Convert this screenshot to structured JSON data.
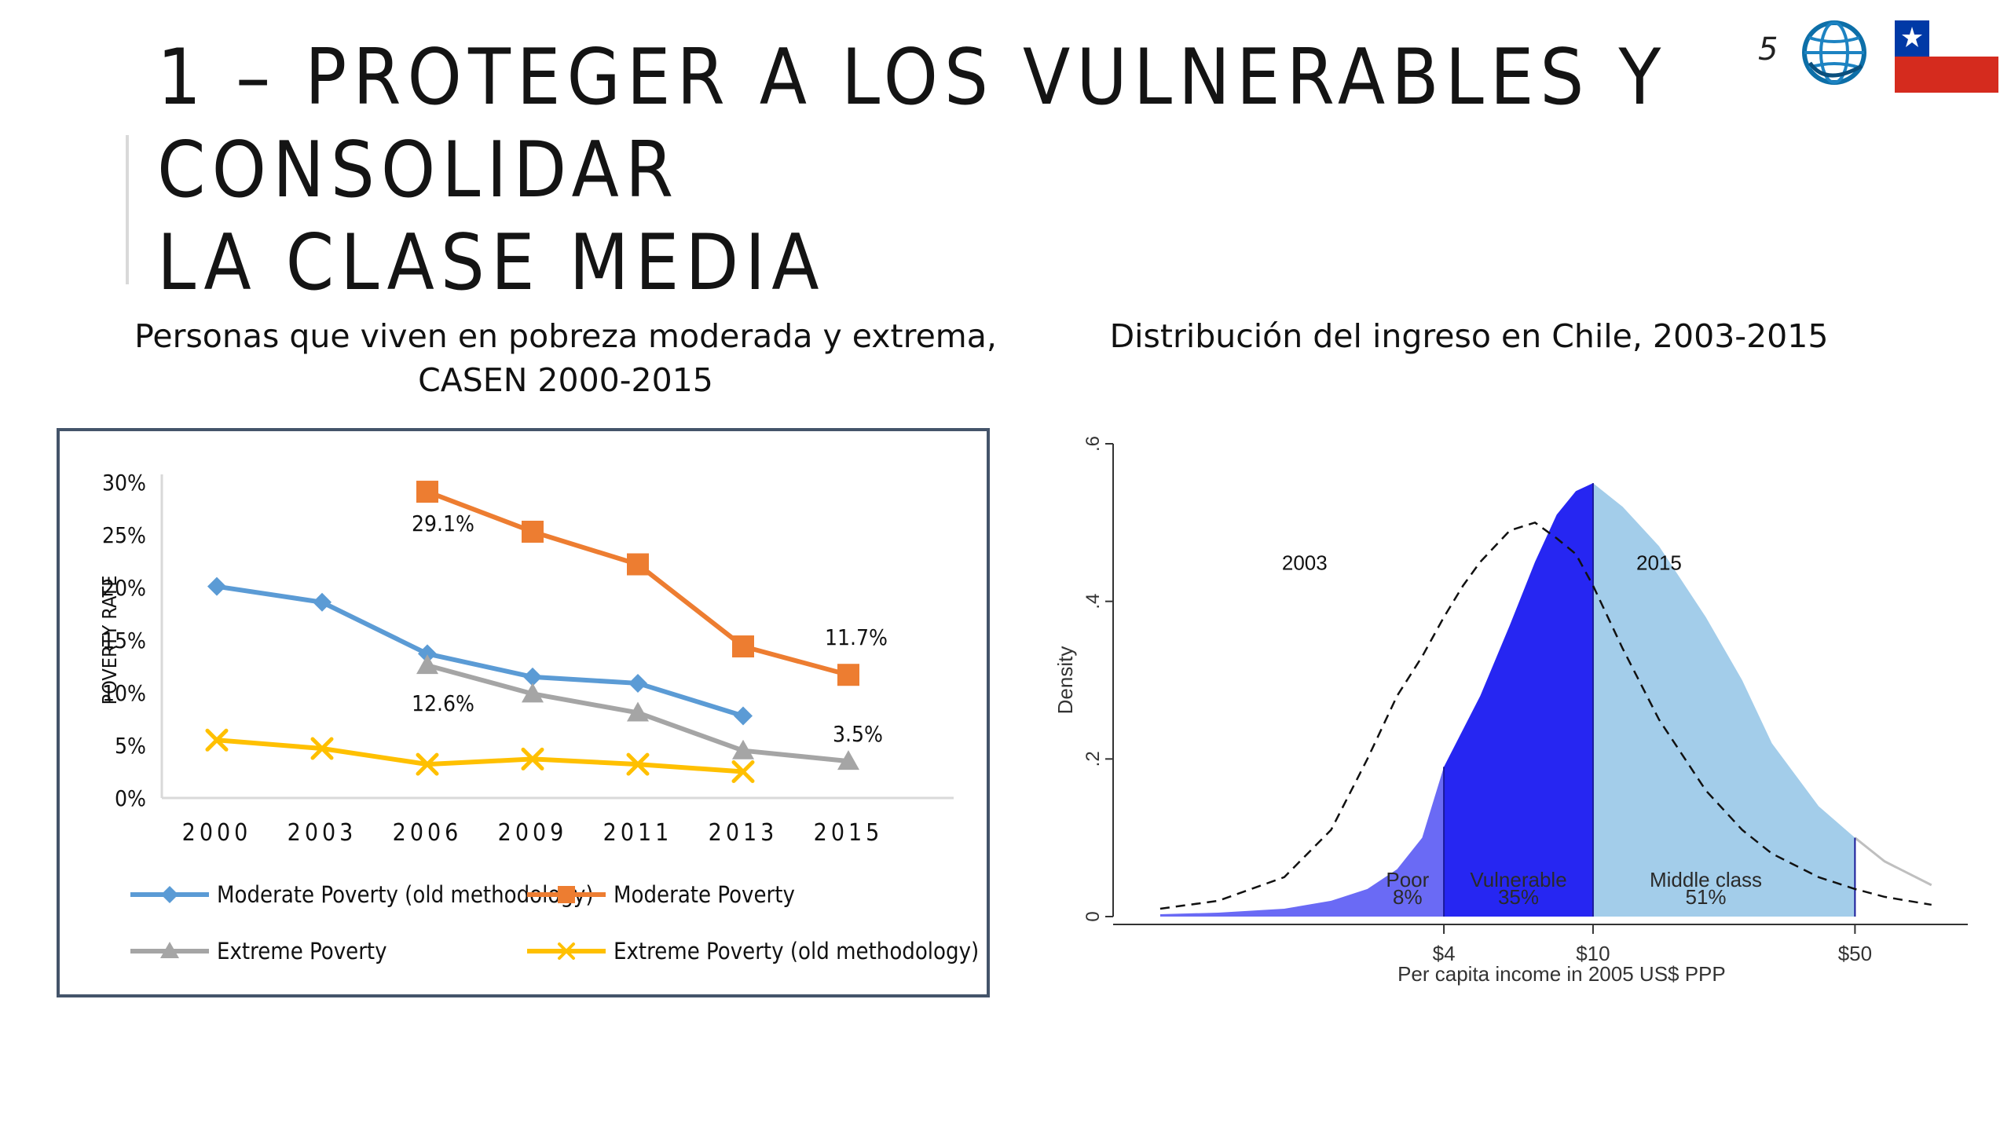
{
  "slide": {
    "title_line1": "1 – PROTEGER A LOS VULNERABLES Y CONSOLIDAR",
    "title_line2": "LA CLASE MEDIA",
    "page_number": "5",
    "logo_icon": "world-bank-globe-icon",
    "flag_icon": "chile-flag-icon"
  },
  "colors": {
    "moderate_old": "#5b9bd5",
    "moderate": "#ed7d31",
    "extreme": "#a5a5a5",
    "extreme_old": "#ffc000",
    "poor_fill": "#6a6af5",
    "vulnerable_fill": "#2626f2",
    "middle_fill": "#a3cdea"
  },
  "chart_data": [
    {
      "type": "line",
      "title": "Personas que viven en pobreza moderada y extrema, CASEN 2000-2015",
      "title_line1": "Personas que viven en pobreza moderada y extrema,",
      "title_line2": "CASEN 2000-2015",
      "ylabel": "POVERTY RATE",
      "xlabel": "",
      "categories": [
        "2000",
        "2003",
        "2006",
        "2009",
        "2011",
        "2013",
        "2015"
      ],
      "ylim": [
        0,
        30
      ],
      "y_ticks": [
        "0%",
        "5%",
        "10%",
        "15%",
        "20%",
        "25%",
        "30%"
      ],
      "grid": false,
      "legend_position": "bottom",
      "series": [
        {
          "name": "Moderate Poverty (old methodology)",
          "marker": "diamond",
          "values": [
            20.1,
            18.6,
            13.7,
            11.5,
            10.9,
            7.8,
            null
          ]
        },
        {
          "name": "Moderate Poverty",
          "marker": "square",
          "values": [
            null,
            null,
            29.1,
            25.3,
            22.2,
            14.4,
            11.7
          ]
        },
        {
          "name": "Extreme Poverty",
          "marker": "triangle",
          "values": [
            null,
            null,
            12.6,
            9.9,
            8.1,
            4.5,
            3.5
          ]
        },
        {
          "name": "Extreme Poverty (old methodology)",
          "marker": "x",
          "values": [
            5.5,
            4.7,
            3.2,
            3.7,
            3.2,
            2.5,
            null
          ]
        }
      ],
      "data_labels": [
        {
          "series": "Moderate Poverty",
          "category": "2006",
          "text": "29.1%"
        },
        {
          "series": "Moderate Poverty",
          "category": "2015",
          "text": "11.7%"
        },
        {
          "series": "Extreme Poverty",
          "category": "2006",
          "text": "12.6%"
        },
        {
          "series": "Extreme Poverty",
          "category": "2015",
          "text": "3.5%"
        }
      ]
    },
    {
      "type": "area",
      "title": "Distribución del ingreso en Chile, 2003-2015",
      "xlabel": "Per capita income in 2005 US$ PPP",
      "ylabel": "Density",
      "x_scale": "log",
      "xlim": [
        0.6,
        100
      ],
      "ylim": [
        0,
        0.6
      ],
      "x_ticks": [
        "$4",
        "$10",
        "$50"
      ],
      "y_ticks": [
        "0",
        ".2",
        ".4",
        ".6"
      ],
      "grid": false,
      "series": [
        {
          "name": "2003",
          "style": "dashed",
          "x": [
            0.7,
            1,
            1.5,
            2,
            2.5,
            3,
            3.5,
            4,
            4.5,
            5,
            6,
            7,
            8,
            9,
            10,
            12,
            15,
            20,
            25,
            30,
            40,
            50,
            60,
            80
          ],
          "y": [
            0.01,
            0.02,
            0.05,
            0.11,
            0.2,
            0.28,
            0.33,
            0.38,
            0.42,
            0.45,
            0.49,
            0.5,
            0.48,
            0.46,
            0.42,
            0.34,
            0.25,
            0.16,
            0.11,
            0.08,
            0.05,
            0.035,
            0.025,
            0.015
          ]
        },
        {
          "name": "2015",
          "style": "filled",
          "x": [
            0.7,
            1,
            1.5,
            2,
            2.5,
            3,
            3.5,
            4,
            5,
            6,
            7,
            8,
            9,
            10,
            12,
            15,
            20,
            25,
            30,
            40,
            50,
            60,
            80
          ],
          "y": [
            0.003,
            0.005,
            0.01,
            0.02,
            0.035,
            0.06,
            0.1,
            0.19,
            0.28,
            0.37,
            0.45,
            0.51,
            0.54,
            0.55,
            0.52,
            0.47,
            0.38,
            0.3,
            0.22,
            0.14,
            0.1,
            0.07,
            0.04
          ]
        }
      ],
      "regions": [
        {
          "label": "Poor",
          "share": "8%",
          "from": 0.7,
          "to": 4
        },
        {
          "label": "Vulnerable",
          "share": "35%",
          "from": 4,
          "to": 10
        },
        {
          "label": "Middle class",
          "share": "51%",
          "from": 10,
          "to": 50
        }
      ],
      "annotations": [
        {
          "text": "2003",
          "x": 1.7,
          "y": 0.45
        },
        {
          "text": "2015",
          "x": 15,
          "y": 0.45
        }
      ]
    }
  ]
}
